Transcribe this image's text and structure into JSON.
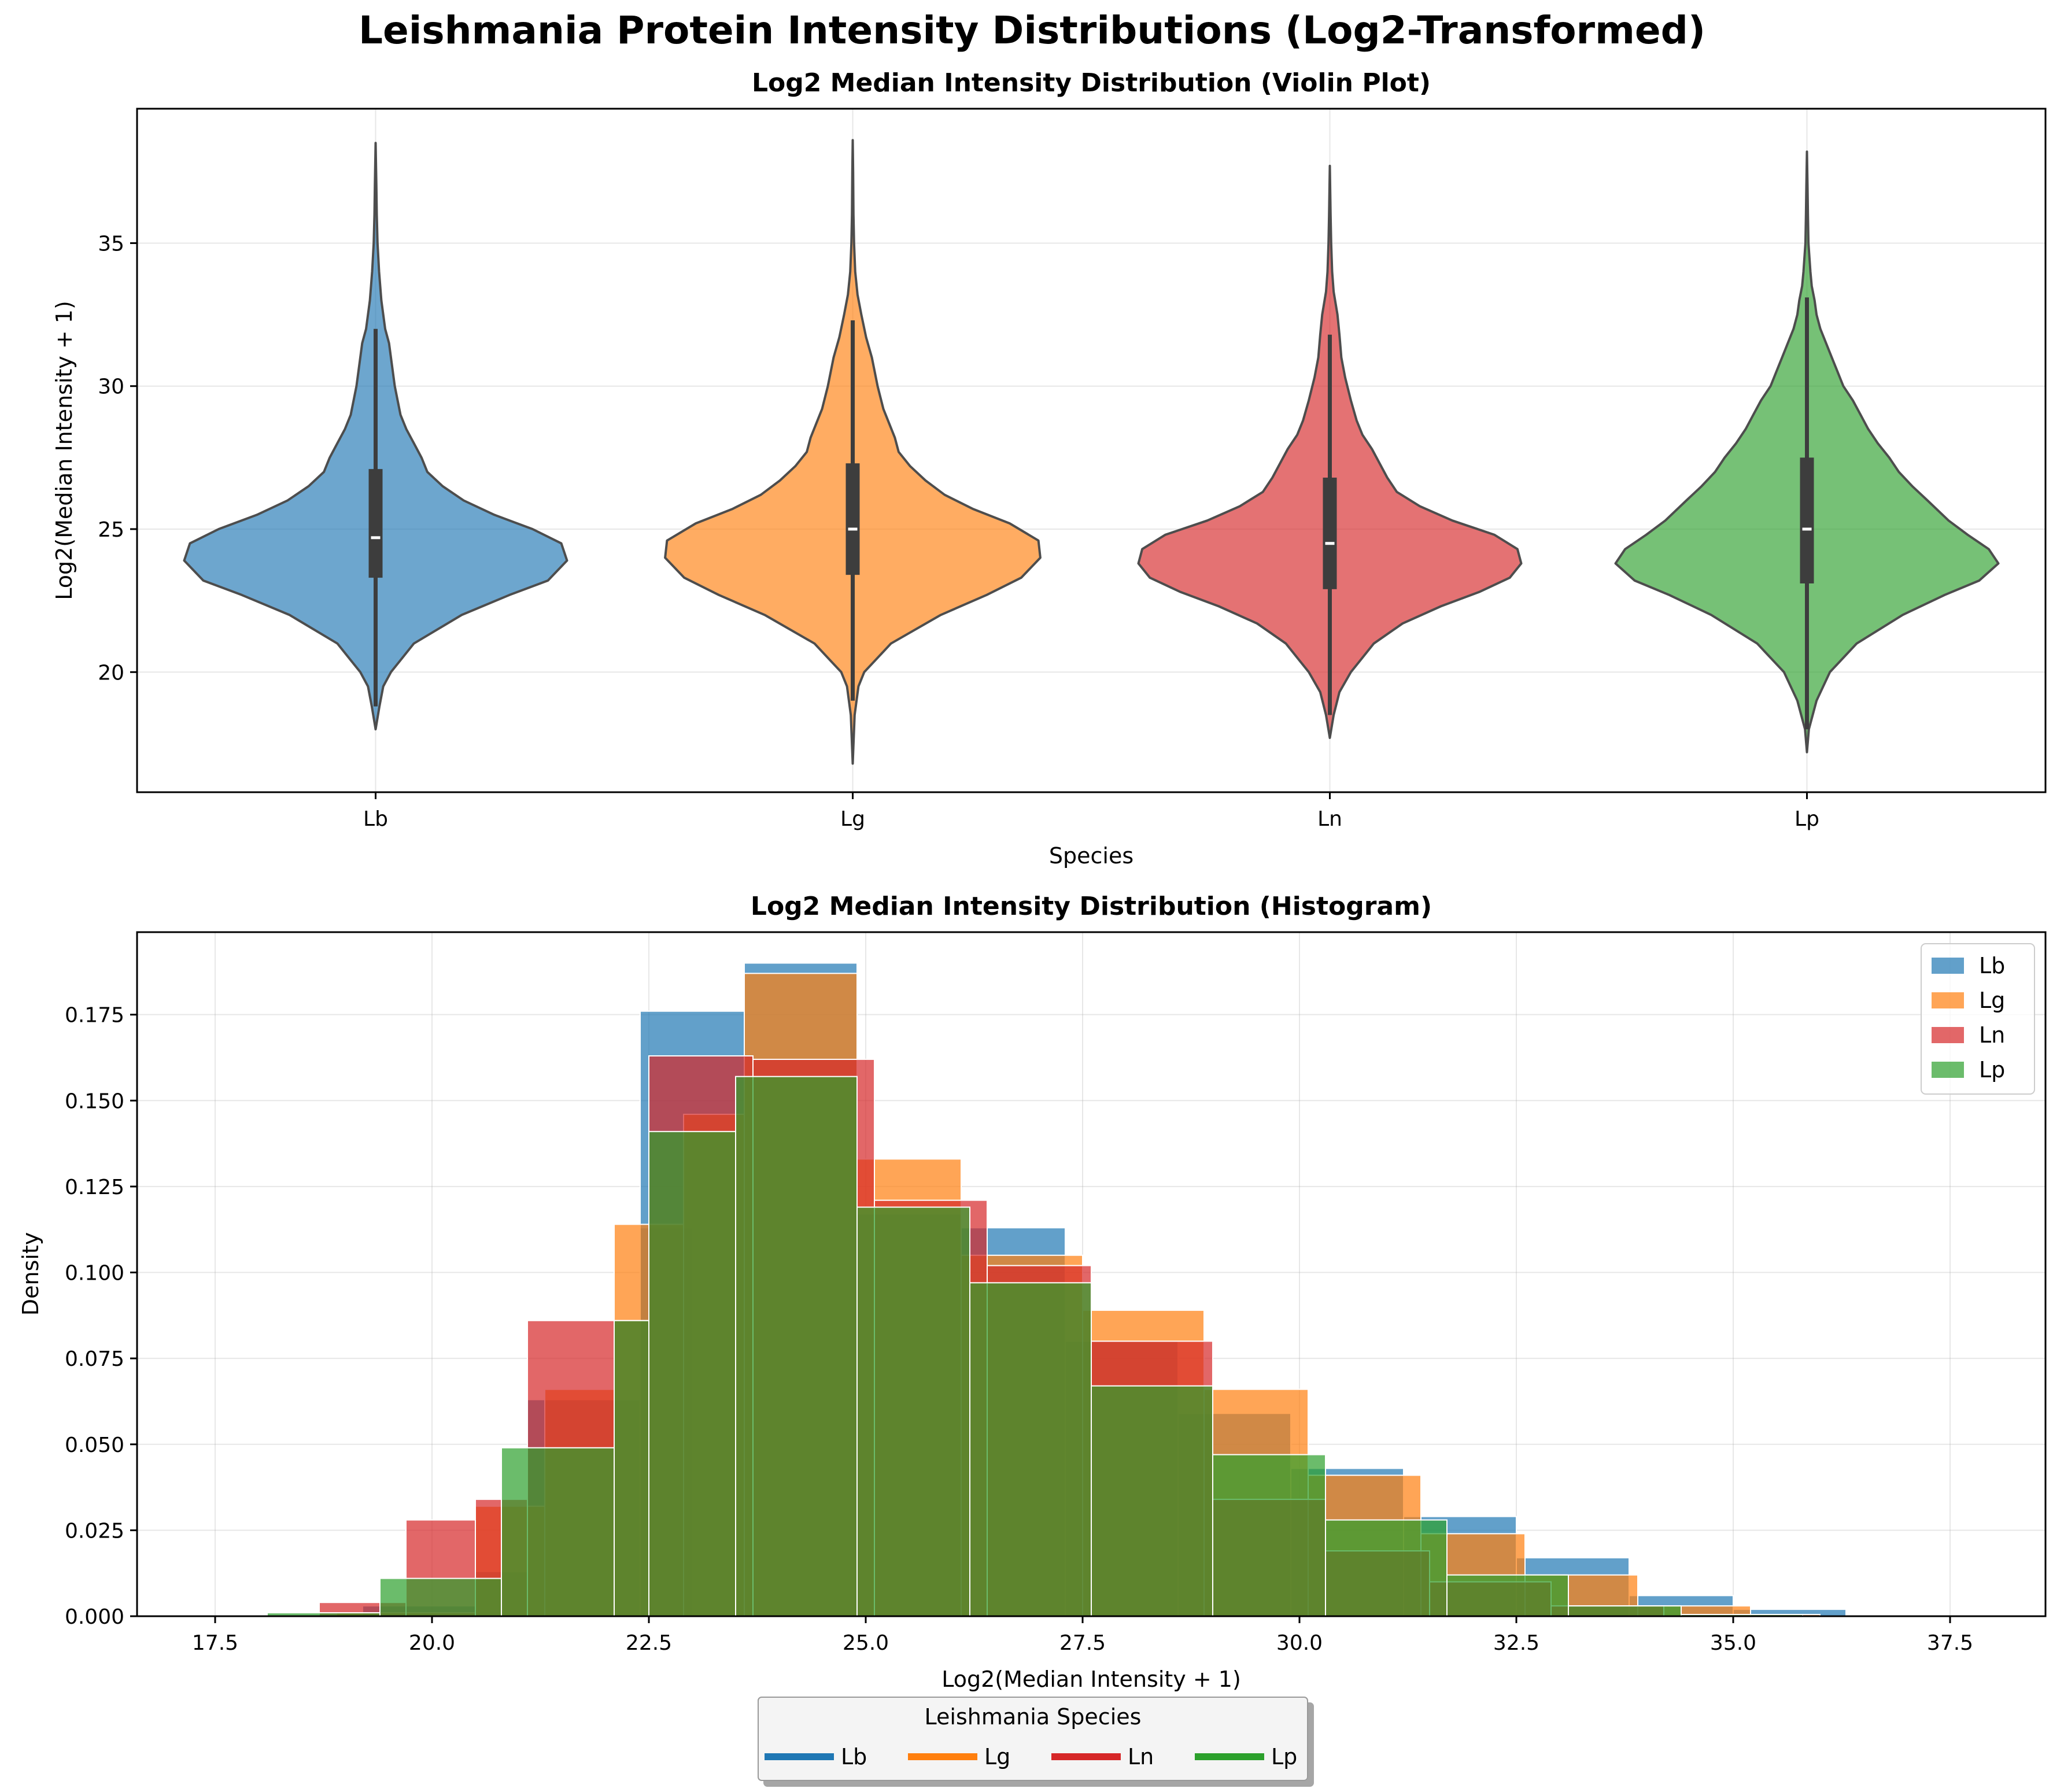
{
  "title": "Leishmania Protein Intensity Distributions (Log2-Transformed)",
  "colors": {
    "Lb": "#1f77b4",
    "Lg": "#ff7f0e",
    "Ln": "#d62728",
    "Lp": "#2ca02c"
  },
  "chart_data": [
    {
      "type": "violin",
      "title": "Log2 Median Intensity Distribution (Violin Plot)",
      "xlabel": "Species",
      "ylabel": "Log2(Median Intensity + 1)",
      "ylim": [
        15.8,
        39.7
      ],
      "yticks": [
        20,
        25,
        30,
        35
      ],
      "grid": true,
      "categories": [
        "Lb",
        "Lg",
        "Ln",
        "Lp"
      ],
      "series": [
        {
          "species": "Lb",
          "min": 18.0,
          "max": 38.5,
          "q1": 23.3,
          "median": 24.7,
          "q3": 27.1,
          "whisker_low": 18.8,
          "whisker_high": 32.0,
          "profile": [
            [
              18.0,
              0.0
            ],
            [
              18.8,
              0.02
            ],
            [
              19.5,
              0.04
            ],
            [
              20.0,
              0.08
            ],
            [
              21.0,
              0.2
            ],
            [
              22.0,
              0.45
            ],
            [
              22.7,
              0.7
            ],
            [
              23.2,
              0.9
            ],
            [
              23.9,
              1.0
            ],
            [
              24.5,
              0.97
            ],
            [
              25.0,
              0.82
            ],
            [
              25.5,
              0.62
            ],
            [
              26.0,
              0.46
            ],
            [
              26.5,
              0.35
            ],
            [
              27.0,
              0.27
            ],
            [
              27.5,
              0.24
            ],
            [
              28.0,
              0.2
            ],
            [
              28.5,
              0.16
            ],
            [
              29.0,
              0.13
            ],
            [
              30.0,
              0.1
            ],
            [
              31.0,
              0.08
            ],
            [
              31.5,
              0.07
            ],
            [
              32.0,
              0.05
            ],
            [
              33.0,
              0.03
            ],
            [
              34.0,
              0.018
            ],
            [
              35.0,
              0.01
            ],
            [
              36.0,
              0.006
            ],
            [
              37.0,
              0.004
            ],
            [
              38.5,
              0.0
            ]
          ]
        },
        {
          "species": "Lg",
          "min": 16.8,
          "max": 38.6,
          "q1": 23.4,
          "median": 25.0,
          "q3": 27.3,
          "whisker_low": 19.0,
          "whisker_high": 32.3,
          "profile": [
            [
              16.8,
              0.0
            ],
            [
              18.5,
              0.01
            ],
            [
              19.5,
              0.03
            ],
            [
              20.0,
              0.06
            ],
            [
              21.0,
              0.2
            ],
            [
              22.0,
              0.46
            ],
            [
              22.7,
              0.7
            ],
            [
              23.3,
              0.88
            ],
            [
              24.0,
              0.98
            ],
            [
              24.6,
              0.97
            ],
            [
              25.2,
              0.82
            ],
            [
              25.7,
              0.63
            ],
            [
              26.2,
              0.48
            ],
            [
              26.7,
              0.38
            ],
            [
              27.2,
              0.3
            ],
            [
              27.7,
              0.24
            ],
            [
              28.2,
              0.22
            ],
            [
              28.7,
              0.19
            ],
            [
              29.2,
              0.16
            ],
            [
              30.0,
              0.13
            ],
            [
              31.0,
              0.1
            ],
            [
              31.7,
              0.07
            ],
            [
              32.5,
              0.045
            ],
            [
              33.2,
              0.025
            ],
            [
              34.0,
              0.013
            ],
            [
              35.0,
              0.007
            ],
            [
              36.0,
              0.004
            ],
            [
              37.5,
              0.002
            ],
            [
              38.6,
              0.0
            ]
          ]
        },
        {
          "species": "Ln",
          "min": 17.7,
          "max": 37.7,
          "q1": 22.9,
          "median": 24.5,
          "q3": 26.8,
          "whisker_low": 18.5,
          "whisker_high": 31.8,
          "profile": [
            [
              17.7,
              0.0
            ],
            [
              18.5,
              0.02
            ],
            [
              19.3,
              0.05
            ],
            [
              20.0,
              0.11
            ],
            [
              21.0,
              0.23
            ],
            [
              21.7,
              0.38
            ],
            [
              22.3,
              0.58
            ],
            [
              22.8,
              0.78
            ],
            [
              23.3,
              0.94
            ],
            [
              23.8,
              1.0
            ],
            [
              24.3,
              0.98
            ],
            [
              24.8,
              0.86
            ],
            [
              25.3,
              0.64
            ],
            [
              25.8,
              0.47
            ],
            [
              26.3,
              0.35
            ],
            [
              26.8,
              0.3
            ],
            [
              27.3,
              0.26
            ],
            [
              27.8,
              0.22
            ],
            [
              28.3,
              0.17
            ],
            [
              28.8,
              0.14
            ],
            [
              29.5,
              0.11
            ],
            [
              30.3,
              0.08
            ],
            [
              31.0,
              0.06
            ],
            [
              31.8,
              0.05
            ],
            [
              32.5,
              0.04
            ],
            [
              33.3,
              0.02
            ],
            [
              34.0,
              0.012
            ],
            [
              35.0,
              0.007
            ],
            [
              36.0,
              0.004
            ],
            [
              37.7,
              0.0
            ]
          ]
        },
        {
          "species": "Lp",
          "min": 17.2,
          "max": 38.2,
          "q1": 23.1,
          "median": 25.0,
          "q3": 27.5,
          "whisker_low": 18.0,
          "whisker_high": 33.1,
          "profile": [
            [
              17.2,
              0.0
            ],
            [
              18.0,
              0.01
            ],
            [
              19.0,
              0.05
            ],
            [
              20.0,
              0.12
            ],
            [
              21.0,
              0.26
            ],
            [
              22.0,
              0.5
            ],
            [
              22.7,
              0.72
            ],
            [
              23.2,
              0.9
            ],
            [
              23.8,
              1.0
            ],
            [
              24.3,
              0.95
            ],
            [
              24.8,
              0.84
            ],
            [
              25.3,
              0.74
            ],
            [
              26.0,
              0.63
            ],
            [
              26.5,
              0.55
            ],
            [
              27.0,
              0.48
            ],
            [
              27.5,
              0.43
            ],
            [
              28.0,
              0.37
            ],
            [
              28.5,
              0.32
            ],
            [
              29.0,
              0.28
            ],
            [
              29.5,
              0.24
            ],
            [
              30.0,
              0.19
            ],
            [
              30.5,
              0.16
            ],
            [
              31.0,
              0.13
            ],
            [
              31.5,
              0.1
            ],
            [
              32.0,
              0.07
            ],
            [
              32.5,
              0.05
            ],
            [
              33.0,
              0.04
            ],
            [
              33.5,
              0.025
            ],
            [
              34.0,
              0.018
            ],
            [
              35.0,
              0.008
            ],
            [
              36.0,
              0.005
            ],
            [
              37.0,
              0.003
            ],
            [
              38.2,
              0.0
            ]
          ]
        }
      ]
    },
    {
      "type": "histogram",
      "title": "Log2 Median Intensity Distribution (Histogram)",
      "xlabel": "Log2(Median Intensity + 1)",
      "ylabel": "Density",
      "xlim": [
        16.6,
        38.6
      ],
      "ylim": [
        0,
        0.199
      ],
      "xticks": [
        "17.5",
        "20.0",
        "22.5",
        "25.0",
        "27.5",
        "30.0",
        "32.5",
        "35.0",
        "37.5"
      ],
      "yticks": [
        "0.000",
        "0.025",
        "0.050",
        "0.075",
        "0.100",
        "0.125",
        "0.150",
        "0.175"
      ],
      "grid": true,
      "legend_position": "top-right",
      "series": [
        {
          "name": "Lb",
          "bins": [
            [
              19.2,
              20.5,
              0.003
            ],
            [
              20.5,
              21.1,
              0.013
            ],
            [
              21.1,
              22.4,
              0.063
            ],
            [
              22.4,
              23.0,
              0.113
            ],
            [
              22.4,
              23.6,
              0.176
            ],
            [
              23.6,
              24.9,
              0.19
            ],
            [
              24.9,
              26.1,
              0.117
            ],
            [
              26.1,
              27.3,
              0.113
            ],
            [
              27.3,
              28.6,
              0.08
            ],
            [
              28.6,
              29.9,
              0.059
            ],
            [
              29.9,
              31.2,
              0.043
            ],
            [
              31.2,
              32.5,
              0.029
            ],
            [
              32.5,
              33.8,
              0.017
            ],
            [
              33.8,
              35.0,
              0.006
            ],
            [
              35.0,
              36.3,
              0.002
            ]
          ]
        },
        {
          "name": "Lg",
          "bins": [
            [
              18.9,
              20.5,
              0.001
            ],
            [
              20.5,
              21.3,
              0.032
            ],
            [
              21.3,
              22.1,
              0.066
            ],
            [
              22.1,
              22.9,
              0.114
            ],
            [
              22.9,
              23.6,
              0.146
            ],
            [
              23.6,
              24.9,
              0.187
            ],
            [
              24.9,
              26.1,
              0.133
            ],
            [
              26.1,
              27.5,
              0.105
            ],
            [
              27.5,
              28.9,
              0.089
            ],
            [
              28.9,
              30.1,
              0.066
            ],
            [
              30.1,
              31.4,
              0.041
            ],
            [
              31.4,
              32.6,
              0.024
            ],
            [
              32.6,
              33.9,
              0.012
            ],
            [
              33.9,
              35.2,
              0.003
            ],
            [
              35.2,
              36.0,
              0.0005
            ]
          ]
        },
        {
          "name": "Ln",
          "bins": [
            [
              18.7,
              19.7,
              0.004
            ],
            [
              19.7,
              20.5,
              0.028
            ],
            [
              20.5,
              21.1,
              0.034
            ],
            [
              21.1,
              22.5,
              0.086
            ],
            [
              22.5,
              23.7,
              0.163
            ],
            [
              23.7,
              25.1,
              0.162
            ],
            [
              25.1,
              26.4,
              0.121
            ],
            [
              26.4,
              27.6,
              0.102
            ],
            [
              27.6,
              29.0,
              0.08
            ],
            [
              29.0,
              30.3,
              0.034
            ],
            [
              30.3,
              31.5,
              0.019
            ],
            [
              31.5,
              32.9,
              0.01
            ],
            [
              32.9,
              34.2,
              0.003
            ]
          ]
        },
        {
          "name": "Lp",
          "bins": [
            [
              18.1,
              19.4,
              0.001
            ],
            [
              19.4,
              20.8,
              0.011
            ],
            [
              20.8,
              22.1,
              0.049
            ],
            [
              22.1,
              22.5,
              0.086
            ],
            [
              22.5,
              23.5,
              0.141
            ],
            [
              23.5,
              24.9,
              0.157
            ],
            [
              24.9,
              26.2,
              0.119
            ],
            [
              26.2,
              27.6,
              0.097
            ],
            [
              27.6,
              29.0,
              0.067
            ],
            [
              29.0,
              30.3,
              0.047
            ],
            [
              30.3,
              31.7,
              0.028
            ],
            [
              31.7,
              33.1,
              0.012
            ],
            [
              33.1,
              34.4,
              0.003
            ],
            [
              34.4,
              35.8,
              0.0005
            ]
          ]
        }
      ]
    }
  ],
  "bottom_legend": {
    "title": "Leishmania Species",
    "items": [
      "Lb",
      "Lg",
      "Ln",
      "Lp"
    ]
  }
}
